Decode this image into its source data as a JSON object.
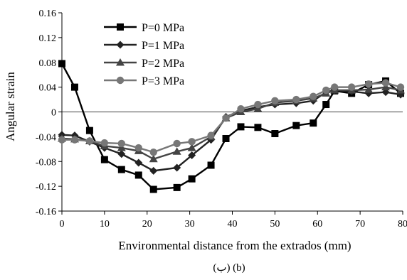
{
  "chart_data": {
    "type": "line",
    "title": "",
    "xlabel": "Environmental distance from the extrados (mm)",
    "ylabel": "Angular strain",
    "caption": "(ب) (b)",
    "xlim": [
      0,
      80
    ],
    "ylim": [
      -0.16,
      0.16
    ],
    "x_ticks": [
      "0",
      "10",
      "20",
      "30",
      "40",
      "50",
      "60",
      "70",
      "80"
    ],
    "y_ticks": [
      "0.16",
      "0.12",
      "0.08",
      "0.04",
      "0",
      "-0.04",
      "-0.08",
      "-0.12",
      "-0.16"
    ],
    "grid": false,
    "legend_position": "top-left",
    "x": [
      0,
      3,
      6.5,
      10,
      14,
      18,
      21.5,
      27,
      30.5,
      35,
      38.5,
      42,
      46,
      50,
      55,
      59,
      62,
      64,
      68,
      72,
      76,
      79.5
    ],
    "series": [
      {
        "name": "P=0 MPa",
        "marker": "square",
        "color": "#000000",
        "values": [
          0.078,
          0.04,
          -0.03,
          -0.077,
          -0.093,
          -0.102,
          -0.125,
          -0.122,
          -0.108,
          -0.086,
          -0.043,
          -0.024,
          -0.025,
          -0.035,
          -0.022,
          -0.018,
          0.012,
          0.034,
          0.03,
          0.044,
          0.05,
          0.03
        ]
      },
      {
        "name": "P=1 MPa",
        "marker": "diamond",
        "color": "#222222",
        "values": [
          -0.037,
          -0.038,
          -0.048,
          -0.058,
          -0.068,
          -0.082,
          -0.095,
          -0.09,
          -0.07,
          -0.045,
          -0.008,
          0.002,
          0.008,
          0.012,
          0.014,
          0.018,
          0.032,
          0.035,
          0.033,
          0.03,
          0.032,
          0.028
        ]
      },
      {
        "name": "P=2 MPa",
        "marker": "triangle",
        "color": "#444444",
        "values": [
          -0.043,
          -0.044,
          -0.047,
          -0.055,
          -0.058,
          -0.063,
          -0.076,
          -0.064,
          -0.058,
          -0.04,
          -0.01,
          0.0,
          0.005,
          0.015,
          0.018,
          0.022,
          0.03,
          0.035,
          0.035,
          0.036,
          0.04,
          0.035
        ]
      },
      {
        "name": "P=3 MPa",
        "marker": "circle",
        "color": "#777777",
        "values": [
          -0.045,
          -0.045,
          -0.047,
          -0.05,
          -0.051,
          -0.058,
          -0.065,
          -0.051,
          -0.048,
          -0.038,
          -0.01,
          0.005,
          0.012,
          0.018,
          0.02,
          0.025,
          0.035,
          0.04,
          0.04,
          0.045,
          0.047,
          0.04
        ]
      }
    ]
  }
}
